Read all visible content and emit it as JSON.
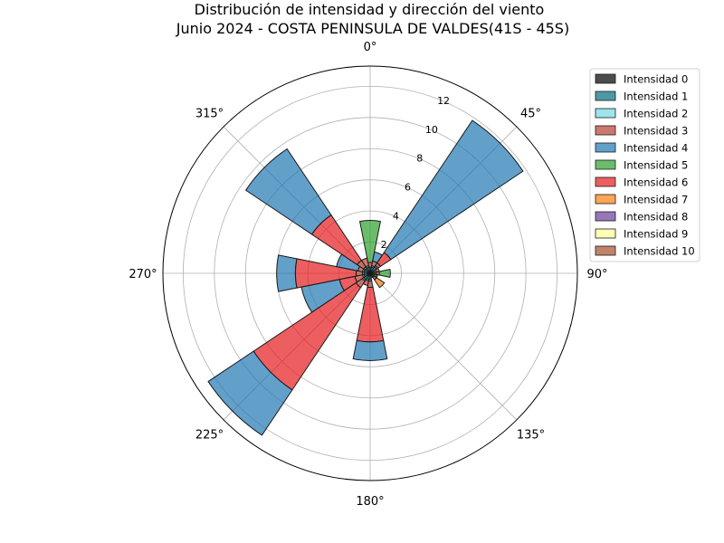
{
  "chart_data": {
    "type": "polar-bar",
    "title_lines": [
      "Distribución de intensidad y dirección del viento",
      "Junio 2024 - COSTA PENINSULA DE VALDES(41S - 45S)"
    ],
    "angle_labels": [
      "0°",
      "45°",
      "90°",
      "135°",
      "180°",
      "225°",
      "270°",
      "315°"
    ],
    "radial_ticks": [
      2,
      4,
      6,
      8,
      10,
      12
    ],
    "radial_max": 13.3,
    "grid": true,
    "legend_position": "right",
    "series": [
      {
        "name": "Intensidad 0",
        "color": "#000000"
      },
      {
        "name": "Intensidad 1",
        "color": "#006d80"
      },
      {
        "name": "Intensidad 2",
        "color": "#74d8e6"
      },
      {
        "name": "Intensidad 3",
        "color": "#b83e30"
      },
      {
        "name": "Intensidad 4",
        "color": "#1f77b4"
      },
      {
        "name": "Intensidad 5",
        "color": "#2ca02c"
      },
      {
        "name": "Intensidad 6",
        "color": "#e41a1c"
      },
      {
        "name": "Intensidad 7",
        "color": "#ff7f0e"
      },
      {
        "name": "Intensidad 8",
        "color": "#6a3d9a"
      },
      {
        "name": "Intensidad 9",
        "color": "#ffff99"
      },
      {
        "name": "Intensidad 10",
        "color": "#a6502a"
      }
    ],
    "bars": [
      {
        "direction": 0,
        "segments": [
          {
            "s": 0,
            "v": 0.1
          },
          {
            "s": 1,
            "v": 0.2
          },
          {
            "s": 2,
            "v": 0.1
          },
          {
            "s": 3,
            "v": 0.3
          },
          {
            "s": 5,
            "v": 2.7
          }
        ]
      },
      {
        "direction": 22.5,
        "segments": [
          {
            "s": 0,
            "v": 0.1
          },
          {
            "s": 1,
            "v": 0.3
          },
          {
            "s": 2,
            "v": 0.1
          },
          {
            "s": 3,
            "v": 0.3
          },
          {
            "s": 4,
            "v": 0.6
          }
        ]
      },
      {
        "direction": 45,
        "segments": [
          {
            "s": 0,
            "v": 0.1
          },
          {
            "s": 1,
            "v": 0.4
          },
          {
            "s": 2,
            "v": 0.1
          },
          {
            "s": 3,
            "v": 0.2
          },
          {
            "s": 6,
            "v": 0.8
          },
          {
            "s": 4,
            "v": 10.2
          }
        ]
      },
      {
        "direction": 67.5,
        "segments": [
          {
            "s": 0,
            "v": 0.1
          },
          {
            "s": 1,
            "v": 0.2
          },
          {
            "s": 2,
            "v": 0.1
          },
          {
            "s": 3,
            "v": 0.2
          }
        ]
      },
      {
        "direction": 90,
        "segments": [
          {
            "s": 0,
            "v": 0.1
          },
          {
            "s": 1,
            "v": 0.2
          },
          {
            "s": 2,
            "v": 0.1
          },
          {
            "s": 3,
            "v": 0.2
          },
          {
            "s": 5,
            "v": 0.7
          }
        ]
      },
      {
        "direction": 112.5,
        "segments": [
          {
            "s": 0,
            "v": 0.1
          },
          {
            "s": 1,
            "v": 0.2
          },
          {
            "s": 2,
            "v": 0.1
          },
          {
            "s": 3,
            "v": 0.1
          }
        ]
      },
      {
        "direction": 135,
        "segments": [
          {
            "s": 0,
            "v": 0.1
          },
          {
            "s": 1,
            "v": 0.2
          },
          {
            "s": 3,
            "v": 0.2
          },
          {
            "s": 7,
            "v": 0.6
          }
        ]
      },
      {
        "direction": 157.5,
        "segments": [
          {
            "s": 0,
            "v": 0.1
          },
          {
            "s": 1,
            "v": 0.2
          }
        ]
      },
      {
        "direction": 180,
        "segments": [
          {
            "s": 0,
            "v": 0.1
          },
          {
            "s": 1,
            "v": 0.3
          },
          {
            "s": 2,
            "v": 0.1
          },
          {
            "s": 3,
            "v": 0.4
          },
          {
            "s": 6,
            "v": 3.5
          },
          {
            "s": 4,
            "v": 1.2
          }
        ]
      },
      {
        "direction": 202.5,
        "segments": [
          {
            "s": 0,
            "v": 0.1
          },
          {
            "s": 1,
            "v": 0.3
          },
          {
            "s": 2,
            "v": 0.1
          },
          {
            "s": 3,
            "v": 0.3
          }
        ]
      },
      {
        "direction": 225,
        "segments": [
          {
            "s": 0,
            "v": 0.2
          },
          {
            "s": 1,
            "v": 0.3
          },
          {
            "s": 2,
            "v": 0.1
          },
          {
            "s": 3,
            "v": 0.5
          },
          {
            "s": 6,
            "v": 7.9
          },
          {
            "s": 4,
            "v": 3.5
          }
        ]
      },
      {
        "direction": 247.5,
        "segments": [
          {
            "s": 0,
            "v": 0.1
          },
          {
            "s": 1,
            "v": 0.3
          },
          {
            "s": 2,
            "v": 0.1
          },
          {
            "s": 3,
            "v": 0.5
          },
          {
            "s": 6,
            "v": 1.0
          },
          {
            "s": 4,
            "v": 2.5
          }
        ]
      },
      {
        "direction": 270,
        "segments": [
          {
            "s": 0,
            "v": 0.1
          },
          {
            "s": 1,
            "v": 0.3
          },
          {
            "s": 2,
            "v": 0.1
          },
          {
            "s": 3,
            "v": 0.4
          },
          {
            "s": 6,
            "v": 3.9
          },
          {
            "s": 4,
            "v": 1.2
          }
        ]
      },
      {
        "direction": 292.5,
        "segments": [
          {
            "s": 0,
            "v": 0.1
          },
          {
            "s": 1,
            "v": 0.3
          },
          {
            "s": 2,
            "v": 0.1
          },
          {
            "s": 3,
            "v": 0.3
          },
          {
            "s": 4,
            "v": 1.4
          }
        ]
      },
      {
        "direction": 315,
        "segments": [
          {
            "s": 0,
            "v": 0.1
          },
          {
            "s": 1,
            "v": 0.3
          },
          {
            "s": 2,
            "v": 0.1
          },
          {
            "s": 3,
            "v": 0.5
          },
          {
            "s": 6,
            "v": 3.5
          },
          {
            "s": 4,
            "v": 5.1
          }
        ]
      },
      {
        "direction": 337.5,
        "segments": [
          {
            "s": 0,
            "v": 0.1
          },
          {
            "s": 1,
            "v": 0.3
          },
          {
            "s": 2,
            "v": 0.1
          },
          {
            "s": 3,
            "v": 0.5
          }
        ]
      }
    ]
  }
}
